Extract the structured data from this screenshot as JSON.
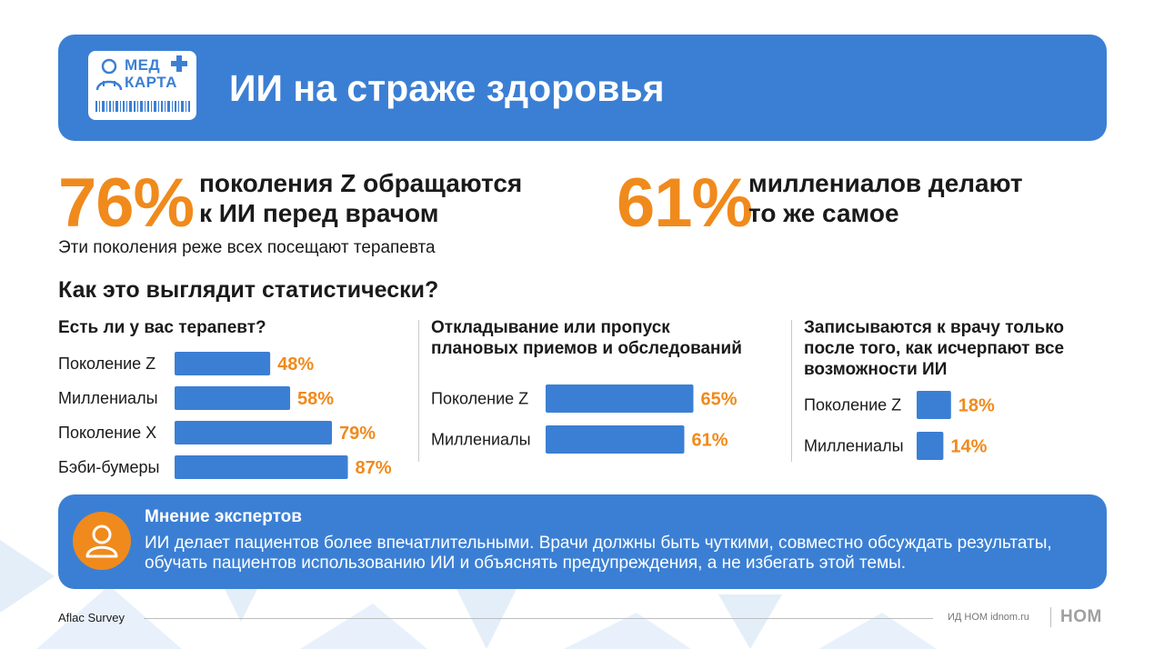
{
  "header": {
    "logo_line1": "МЕД",
    "logo_line2": "КАРТА",
    "title": "ИИ на страже здоровья"
  },
  "stats": [
    {
      "percent": "76%",
      "line1": "поколения Z обращаются",
      "line2": "к ИИ перед врачом"
    },
    {
      "percent": "61%",
      "line1": "миллениалов делают",
      "line2": "то же самое"
    }
  ],
  "note": "Эти поколения реже всех посещают терапевта",
  "section_title": "Как это выглядит статистически?",
  "chart_data": [
    {
      "type": "bar",
      "orientation": "horizontal",
      "title": "Есть ли у вас терапевт?",
      "categories": [
        "Поколение Z",
        "Миллениалы",
        "Поколение X",
        "Бэби-бумеры"
      ],
      "values": [
        48,
        58,
        79,
        87
      ],
      "value_labels": [
        "48%",
        "58%",
        "79%",
        "87%"
      ],
      "unit": "%",
      "xlim": [
        0,
        100
      ]
    },
    {
      "type": "bar",
      "orientation": "horizontal",
      "title": "Откладывание или пропуск плановых приемов и обследований",
      "title_lines": [
        "Откладывание или пропуск",
        "плановых приемов и обследований"
      ],
      "categories": [
        "Поколение Z",
        "Миллениалы"
      ],
      "values": [
        65,
        61
      ],
      "value_labels": [
        "65%",
        "61%"
      ],
      "unit": "%",
      "xlim": [
        0,
        100
      ]
    },
    {
      "type": "bar",
      "orientation": "horizontal",
      "title": "Записываются к врачу только после того, как исчерпают все возможности ИИ",
      "title_lines": [
        "Записываются к врачу только",
        "после того, как исчерпают все",
        "возможности ИИ"
      ],
      "categories": [
        "Поколение Z",
        "Миллениалы"
      ],
      "values": [
        18,
        14
      ],
      "value_labels": [
        "18%",
        "14%"
      ],
      "unit": "%",
      "xlim": [
        0,
        100
      ]
    }
  ],
  "experts": {
    "title": "Мнение экспертов",
    "text": "ИИ делает пациентов более впечатлительными. Врачи должны быть чуткими, совместно обсуждать результаты, обучать пациентов использованию ИИ и объяснять предупреждения, а не избегать этой темы."
  },
  "footer": {
    "source": "Aflac Survey",
    "publisher": "ИД НОМ idnom.ru",
    "brand": "НОМ"
  },
  "colors": {
    "primary_blue": "#3b7fd4",
    "accent_orange": "#f08a1c",
    "bar_blue": "#3b7fd4",
    "text_dark": "#1a1a1a"
  }
}
